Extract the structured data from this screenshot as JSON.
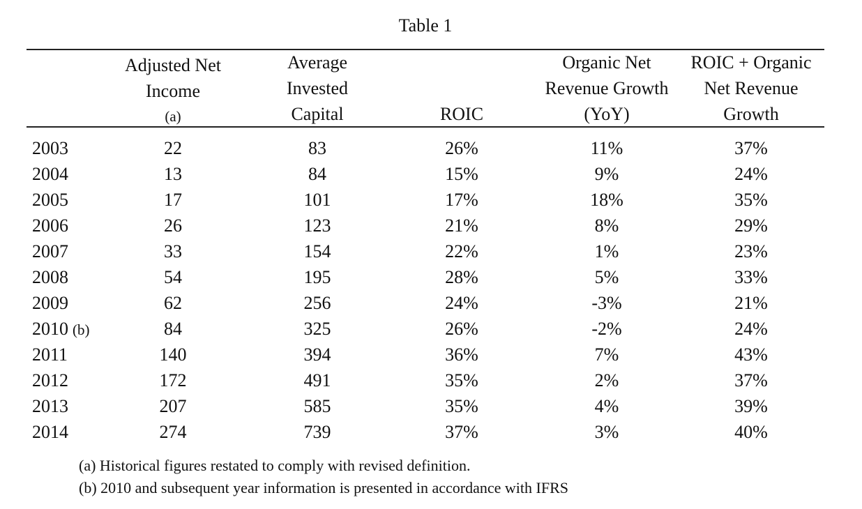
{
  "title": "Table 1",
  "columns": [
    {
      "lines": [
        "Adjusted Net",
        "Income"
      ],
      "note": "(a)"
    },
    {
      "lines": [
        "Average",
        "Invested",
        "Capital"
      ]
    },
    {
      "lines": [
        "ROIC"
      ]
    },
    {
      "lines": [
        "Organic Net",
        "Revenue Growth",
        "(YoY)"
      ]
    },
    {
      "lines": [
        "ROIC + Organic",
        "Net Revenue",
        "Growth"
      ]
    }
  ],
  "rows": [
    {
      "year": "2003",
      "note": "",
      "values": [
        "22",
        "83",
        "26%",
        "11%",
        "37%"
      ]
    },
    {
      "year": "2004",
      "note": "",
      "values": [
        "13",
        "84",
        "15%",
        "9%",
        "24%"
      ]
    },
    {
      "year": "2005",
      "note": "",
      "values": [
        "17",
        "101",
        "17%",
        "18%",
        "35%"
      ]
    },
    {
      "year": "2006",
      "note": "",
      "values": [
        "26",
        "123",
        "21%",
        "8%",
        "29%"
      ]
    },
    {
      "year": "2007",
      "note": "",
      "values": [
        "33",
        "154",
        "22%",
        "1%",
        "23%"
      ]
    },
    {
      "year": "2008",
      "note": "",
      "values": [
        "54",
        "195",
        "28%",
        "5%",
        "33%"
      ]
    },
    {
      "year": "2009",
      "note": "",
      "values": [
        "62",
        "256",
        "24%",
        "-3%",
        "21%"
      ]
    },
    {
      "year": "2010",
      "note": "(b)",
      "values": [
        "84",
        "325",
        "26%",
        "-2%",
        "24%"
      ]
    },
    {
      "year": "2011",
      "note": "",
      "values": [
        "140",
        "394",
        "36%",
        "7%",
        "43%"
      ]
    },
    {
      "year": "2012",
      "note": "",
      "values": [
        "172",
        "491",
        "35%",
        "2%",
        "37%"
      ]
    },
    {
      "year": "2013",
      "note": "",
      "values": [
        "207",
        "585",
        "35%",
        "4%",
        "39%"
      ]
    },
    {
      "year": "2014",
      "note": "",
      "values": [
        "274",
        "739",
        "37%",
        "3%",
        "40%"
      ]
    }
  ],
  "footnotes": [
    "(a) Historical figures restated to comply with revised definition.",
    "(b) 2010 and subsequent year information is presented in accordance with IFRS"
  ]
}
